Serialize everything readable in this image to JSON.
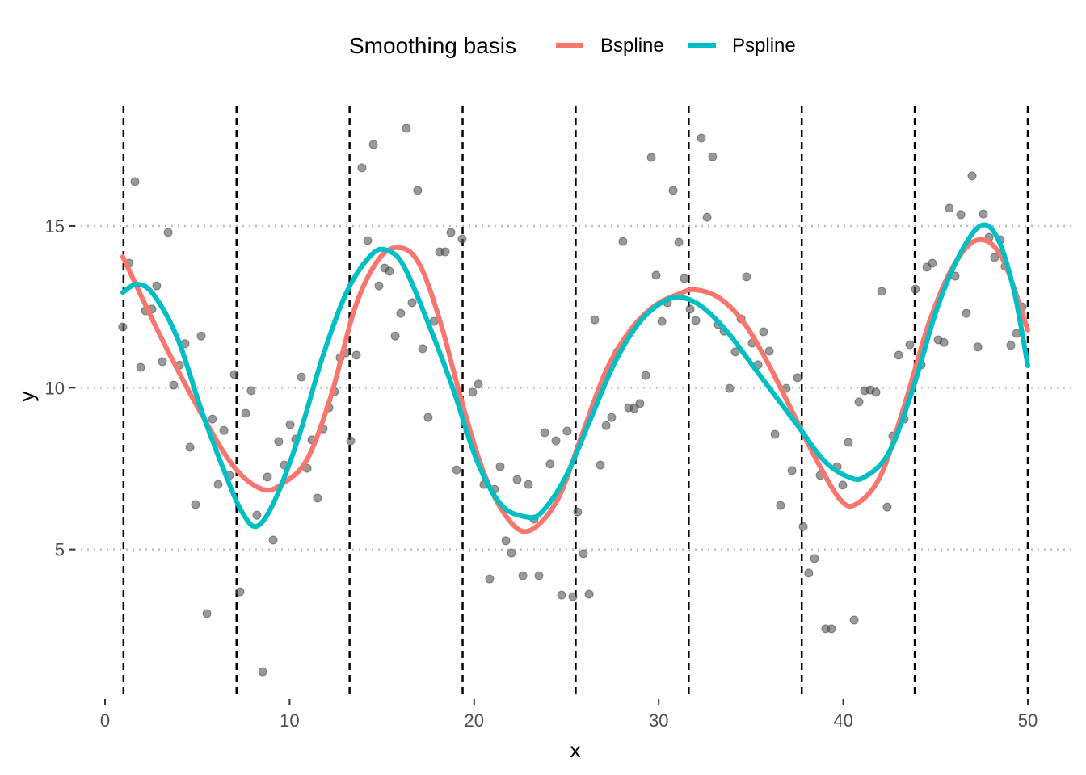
{
  "chart_data": {
    "type": "scatter",
    "title": "",
    "xlabel": "x",
    "ylabel": "y",
    "xlim": [
      -1.5,
      51.5
    ],
    "ylim": [
      0.5,
      18.7
    ],
    "x_ticks": [
      0,
      10,
      20,
      30,
      40,
      50
    ],
    "x_tick_labels": [
      "0",
      "10",
      "20",
      "30",
      "40",
      "50"
    ],
    "y_ticks": [
      5,
      10,
      15
    ],
    "y_tick_labels": [
      "5",
      "10",
      "15"
    ],
    "grid": "horizontal dotted",
    "legend": {
      "title": "Smoothing basis",
      "placement": "top",
      "entries": [
        "Bspline",
        "Pspline"
      ]
    },
    "knots": [
      1,
      7.125,
      13.25,
      19.375,
      25.5,
      31.625,
      37.75,
      43.875,
      50
    ],
    "points": {
      "color": "#555555",
      "x": [
        0.96,
        1.31,
        1.62,
        1.93,
        2.19,
        2.54,
        2.8,
        3.11,
        3.42,
        3.72,
        4.03,
        4.33,
        4.6,
        4.9,
        5.21,
        5.52,
        5.82,
        6.13,
        6.44,
        6.74,
        7.01,
        7.31,
        7.62,
        7.92,
        8.23,
        8.54,
        8.8,
        9.11,
        9.41,
        9.72,
        10.03,
        10.33,
        10.64,
        10.95,
        11.21,
        11.51,
        11.82,
        12.13,
        12.43,
        12.74,
        13.05,
        13.31,
        13.62,
        13.92,
        14.23,
        14.54,
        14.84,
        15.15,
        15.41,
        15.72,
        16.02,
        16.33,
        16.64,
        16.94,
        17.21,
        17.51,
        17.82,
        18.13,
        18.43,
        18.74,
        19.05,
        19.35,
        19.66,
        19.92,
        20.23,
        20.53,
        20.84,
        21.1,
        21.41,
        21.72,
        22.02,
        22.33,
        22.64,
        22.94,
        23.25,
        23.51,
        23.82,
        24.12,
        24.43,
        24.74,
        25.04,
        25.35,
        25.61,
        25.92,
        26.23,
        26.53,
        26.84,
        27.15,
        27.45,
        27.76,
        28.06,
        28.37,
        28.68,
        28.98,
        29.29,
        29.6,
        29.86,
        30.17,
        30.47,
        30.78,
        31.09,
        31.39,
        31.7,
        32.01,
        32.31,
        32.62,
        32.92,
        33.23,
        33.54,
        33.84,
        34.15,
        34.46,
        34.76,
        35.07,
        35.38,
        35.68,
        35.99,
        36.3,
        36.6,
        36.91,
        37.22,
        37.52,
        37.83,
        38.13,
        38.44,
        38.75,
        39.05,
        39.36,
        39.67,
        39.97,
        40.28,
        40.59,
        40.85,
        41.16,
        41.46,
        41.77,
        42.08,
        42.38,
        42.69,
        43.0,
        43.3,
        43.61,
        43.91,
        44.22,
        44.53,
        44.83,
        45.14,
        45.45,
        45.75,
        46.06,
        46.37,
        46.67,
        46.98,
        47.29,
        47.59,
        47.9,
        48.2,
        48.51,
        48.77,
        49.08,
        49.39,
        49.69
      ],
      "y": [
        11.88,
        13.85,
        16.37,
        10.63,
        12.38,
        12.43,
        13.15,
        10.81,
        14.8,
        10.08,
        10.7,
        11.36,
        8.16,
        6.39,
        11.6,
        3.02,
        9.03,
        7.01,
        8.68,
        7.29,
        10.41,
        3.69,
        9.21,
        9.91,
        6.06,
        1.22,
        7.24,
        5.29,
        8.34,
        7.61,
        8.86,
        8.41,
        10.33,
        7.51,
        8.39,
        6.59,
        8.73,
        9.38,
        9.88,
        10.93,
        11.08,
        8.36,
        11.01,
        16.8,
        14.55,
        17.52,
        13.15,
        13.7,
        13.6,
        11.6,
        12.3,
        18.02,
        12.63,
        16.1,
        11.21,
        9.08,
        12.05,
        14.2,
        14.2,
        14.8,
        7.46,
        14.6,
        8.66,
        9.86,
        10.11,
        7.01,
        4.09,
        6.86,
        7.56,
        5.27,
        4.89,
        7.16,
        4.19,
        7.01,
        5.94,
        4.19,
        8.61,
        7.64,
        8.36,
        3.59,
        8.66,
        3.54,
        6.16,
        4.87,
        3.62,
        12.1,
        7.61,
        8.83,
        9.08,
        11.11,
        14.52,
        9.38,
        9.36,
        9.51,
        10.38,
        17.12,
        13.48,
        12.05,
        12.63,
        16.1,
        14.5,
        13.38,
        12.43,
        12.08,
        17.72,
        15.27,
        17.14,
        11.95,
        11.75,
        9.98,
        11.11,
        12.13,
        13.43,
        11.38,
        10.71,
        11.73,
        11.13,
        8.56,
        6.36,
        9.98,
        7.44,
        10.31,
        5.71,
        4.27,
        4.72,
        7.29,
        2.55,
        2.55,
        7.56,
        6.99,
        8.31,
        2.82,
        9.56,
        9.91,
        9.93,
        9.86,
        12.98,
        6.31,
        8.51,
        11.01,
        9.03,
        11.33,
        13.05,
        10.71,
        13.73,
        13.85,
        11.48,
        11.4,
        15.55,
        13.45,
        15.35,
        12.3,
        16.55,
        11.26,
        15.37,
        14.65,
        14.03,
        14.57,
        13.75,
        11.31,
        11.68,
        12.5
      ]
    },
    "series": [
      {
        "name": "Bspline",
        "color": "#F8766D",
        "x": [
          0.96,
          3.06,
          5.25,
          7.01,
          8.54,
          9.63,
          10.95,
          12.26,
          13.57,
          14.89,
          16.07,
          17.08,
          18.17,
          19.35,
          20.58,
          21.89,
          23.03,
          24.52,
          25.83,
          27.15,
          28.46,
          29.77,
          31.09,
          31.96,
          33.27,
          34.59,
          35.9,
          37.22,
          38.53,
          39.84,
          40.72,
          42.03,
          43.35,
          44.66,
          45.97,
          47.29,
          48.6,
          50.0
        ],
        "y": [
          14.05,
          11.53,
          9.16,
          7.54,
          6.86,
          7.04,
          7.79,
          9.78,
          12.52,
          14.02,
          14.32,
          13.77,
          12.03,
          9.53,
          7.29,
          5.91,
          5.59,
          6.54,
          8.53,
          10.53,
          11.78,
          12.53,
          12.9,
          13.03,
          12.78,
          12.03,
          10.78,
          9.28,
          7.79,
          6.54,
          6.41,
          7.29,
          9.53,
          12.03,
          13.77,
          14.57,
          14.02,
          11.78
        ]
      },
      {
        "name": "Pspline",
        "color": "#00BFC4",
        "x": [
          0.96,
          1.75,
          2.63,
          3.94,
          5.25,
          6.57,
          7.44,
          8.23,
          9.19,
          10.51,
          11.82,
          13.13,
          14.45,
          15.32,
          16.2,
          17.51,
          18.83,
          20.14,
          21.45,
          22.77,
          23.64,
          24.96,
          26.27,
          27.58,
          28.9,
          30.21,
          31.3,
          32.4,
          33.71,
          35.03,
          36.34,
          37.65,
          38.97,
          40.28,
          41.16,
          42.47,
          43.78,
          45.1,
          46.41,
          47.5,
          48.38,
          49.26,
          50.0
        ],
        "y": [
          12.95,
          13.2,
          12.88,
          11.51,
          9.26,
          7.26,
          6.14,
          5.72,
          6.51,
          8.51,
          11.01,
          13.0,
          14.12,
          14.24,
          13.75,
          12.0,
          10.01,
          7.76,
          6.39,
          6.01,
          6.14,
          7.24,
          8.98,
          10.73,
          11.98,
          12.65,
          12.78,
          12.48,
          11.73,
          10.73,
          9.73,
          8.74,
          7.74,
          7.24,
          7.24,
          7.99,
          9.98,
          12.48,
          14.22,
          15.02,
          14.6,
          12.98,
          10.68
        ]
      }
    ]
  }
}
